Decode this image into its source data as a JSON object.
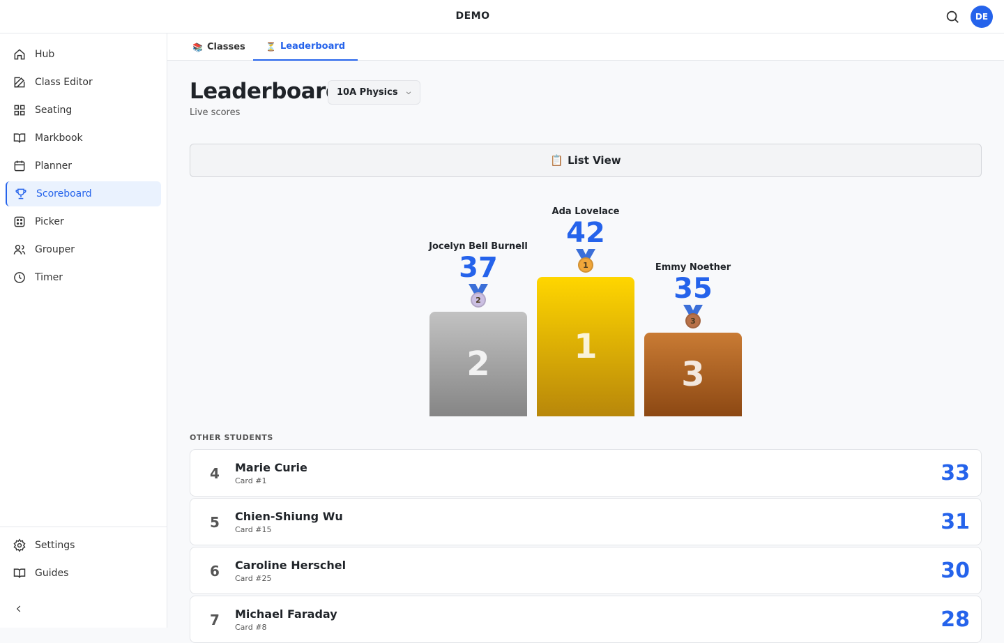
{
  "header": {
    "title": "DEMO",
    "avatar": "DE"
  },
  "sidebar": {
    "nav": [
      "Hub",
      "Class Editor",
      "Seating",
      "Markbook",
      "Planner",
      "Scoreboard",
      "Picker",
      "Grouper",
      "Timer"
    ],
    "active": 5,
    "footer": [
      "Settings",
      "Guides"
    ]
  },
  "tabs": [
    {
      "icon": "📚",
      "label": "Classes"
    },
    {
      "icon": "⏳",
      "label": "Leaderboard"
    }
  ],
  "active_tab": 1,
  "page": {
    "title": "Leaderboard",
    "class_select": "10A Physics",
    "subtitle": "Live scores",
    "list_view": {
      "icon": "📋",
      "label": "List View"
    }
  },
  "podium": [
    {
      "rank": 1,
      "name": "Ada Lovelace",
      "score": 42
    },
    {
      "rank": 2,
      "name": "Jocelyn Bell Burnell",
      "score": 37
    },
    {
      "rank": 3,
      "name": "Emmy Noether",
      "score": 35
    }
  ],
  "other_students": {
    "heading": "OTHER STUDENTS",
    "rows": [
      {
        "rank": 4,
        "name": "Marie Curie",
        "card": "Card #1",
        "score": 33
      },
      {
        "rank": 5,
        "name": "Chien-Shiung Wu",
        "card": "Card #15",
        "score": 31
      },
      {
        "rank": 6,
        "name": "Caroline Herschel",
        "card": "Card #25",
        "score": 30
      },
      {
        "rank": 7,
        "name": "Michael Faraday",
        "card": "Card #8",
        "score": 28
      }
    ]
  }
}
